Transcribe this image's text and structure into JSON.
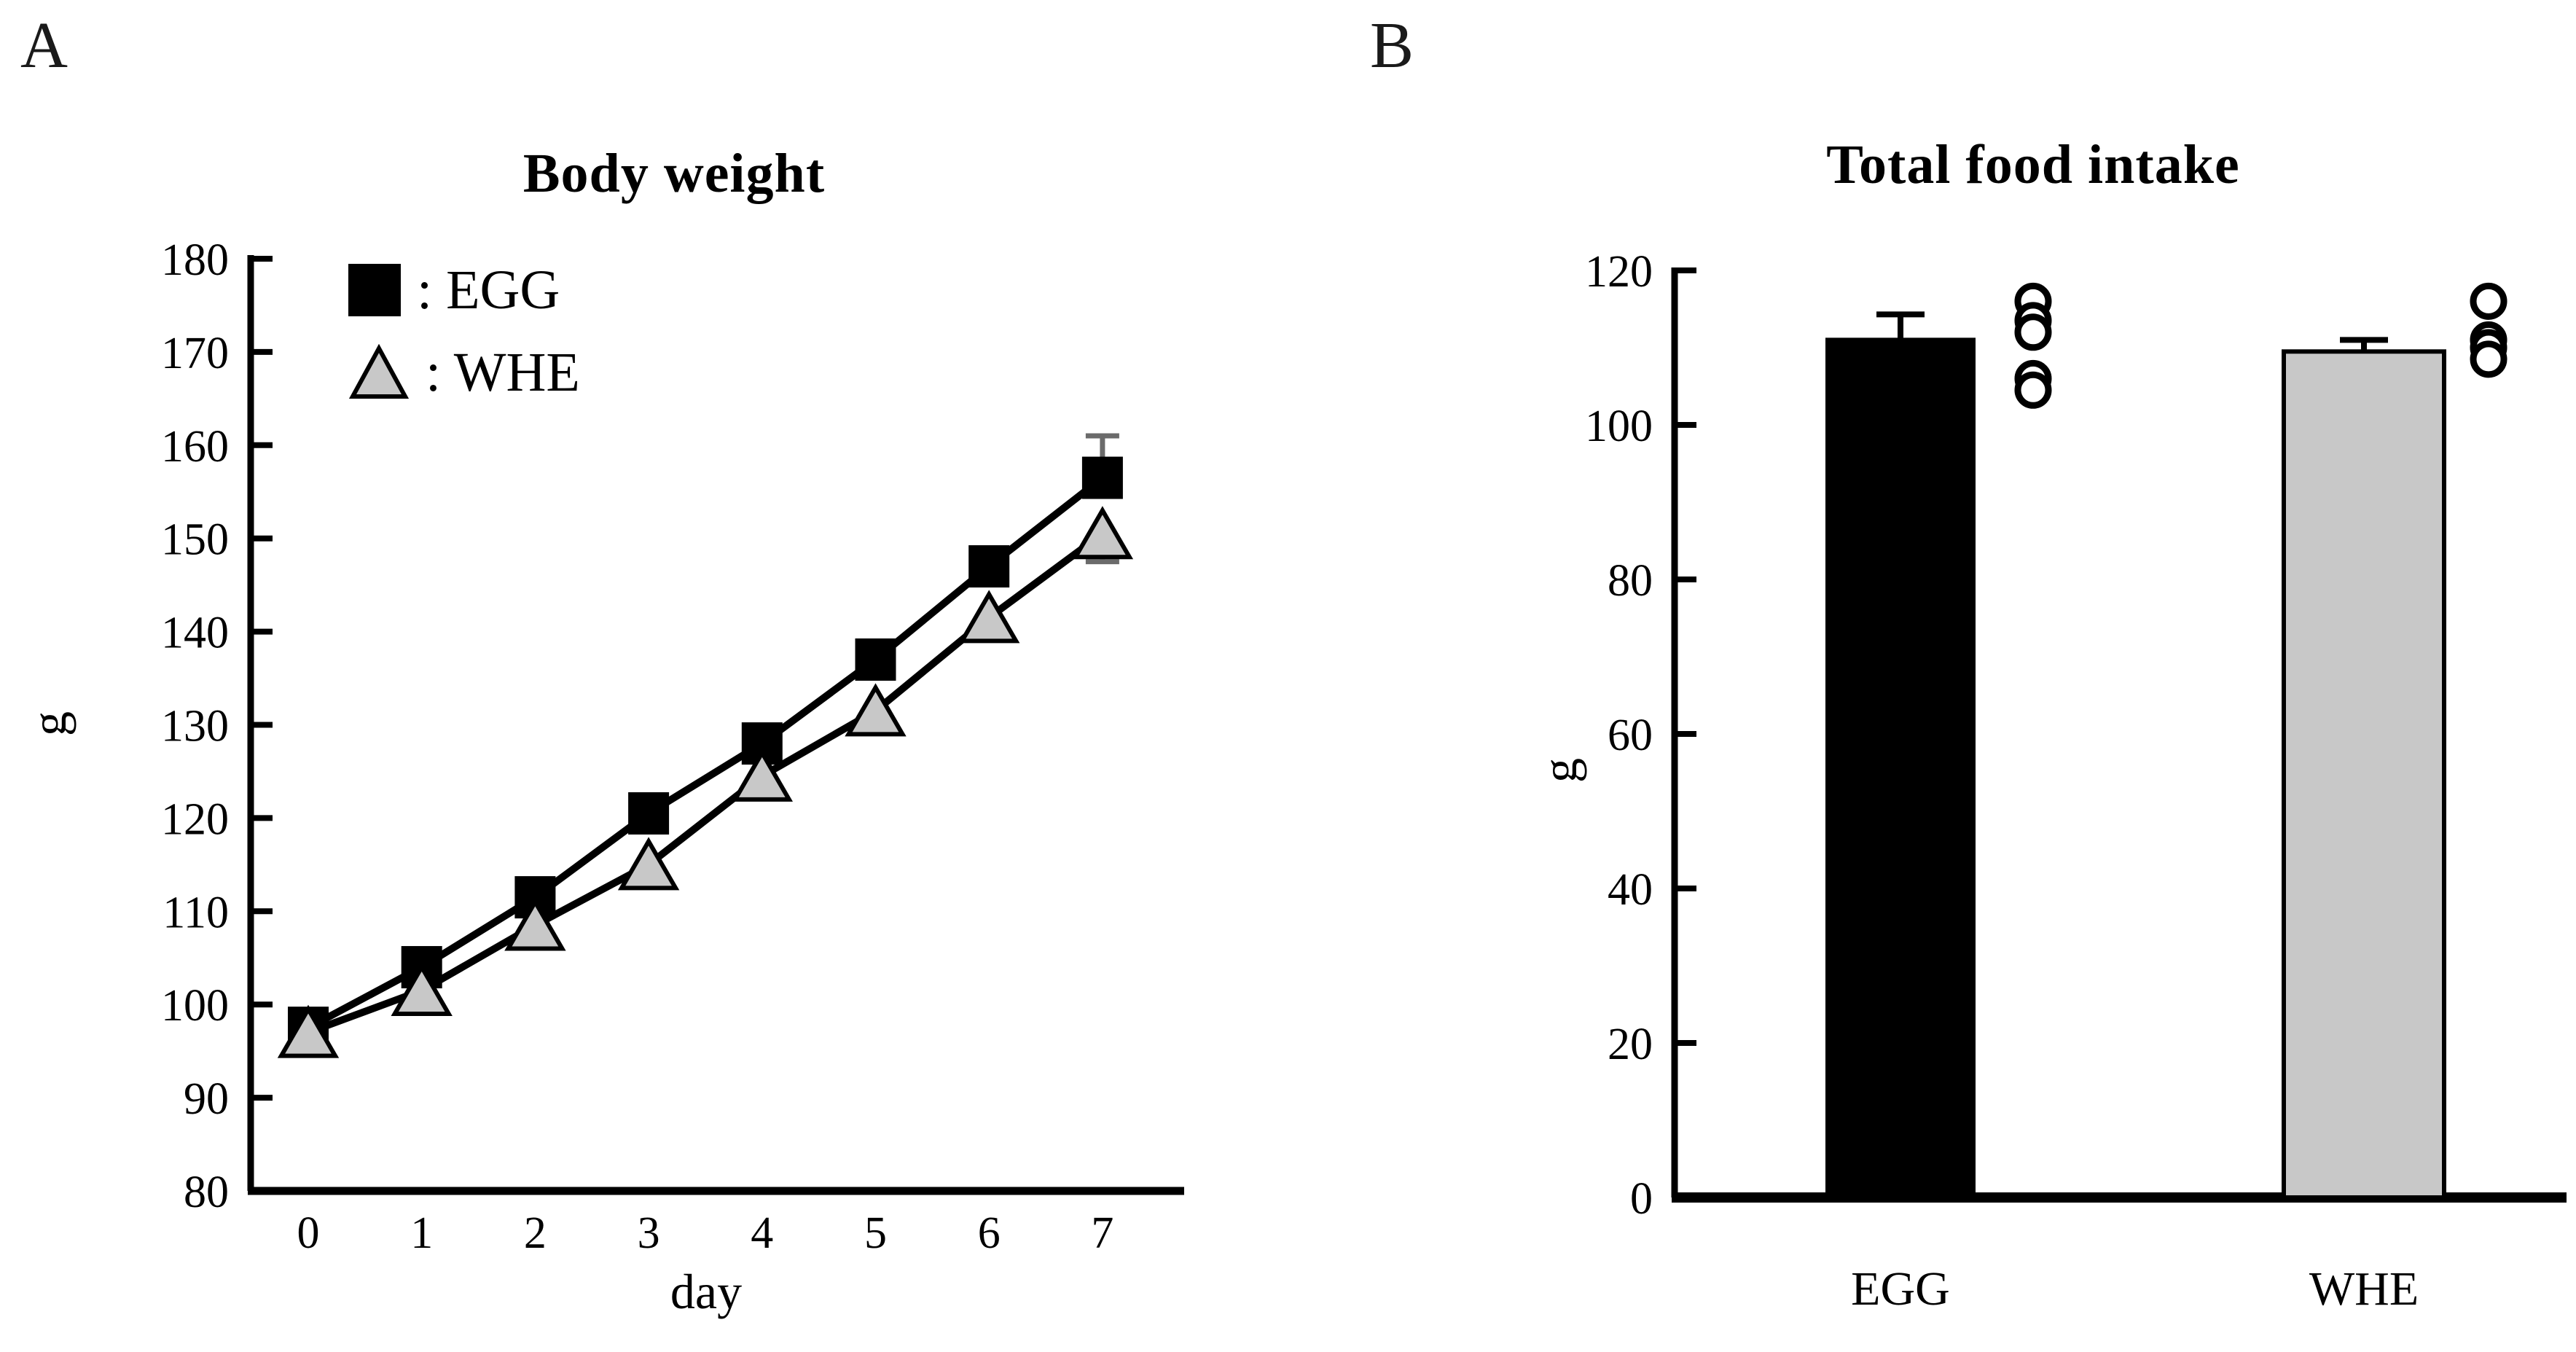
{
  "figure": {
    "panel_a": {
      "label": "A",
      "legend": [
        {
          "marker": "square-icon",
          "marker_color": "#000000",
          "label": ": EGG"
        },
        {
          "marker": "triangle-icon",
          "marker_color": "#c8c8c8",
          "label": ": WHE"
        }
      ]
    },
    "panel_b": {
      "label": "B"
    }
  },
  "colors": {
    "black": "#000000",
    "gray_fill": "#c8c8c8",
    "error_bar_a": "#6b6b6b",
    "error_bar_b": "#000000",
    "dot_fill": "#ffffff"
  },
  "chart_data": [
    {
      "id": "body-weight",
      "type": "line",
      "title": "Body weight",
      "xlabel": "day",
      "ylabel": "g",
      "x": [
        0,
        1,
        2,
        3,
        4,
        5,
        6,
        7
      ],
      "xticks": [
        "0",
        "1",
        "2",
        "3",
        "4",
        "5",
        "6",
        "7"
      ],
      "yticks": [
        80,
        90,
        100,
        110,
        120,
        130,
        140,
        150,
        160,
        170,
        180
      ],
      "ylim": [
        80,
        180
      ],
      "grid": false,
      "legend_position": "top-left-inside",
      "error_color": "#6b6b6b",
      "series": [
        {
          "name": "EGG",
          "marker": "square",
          "fill": "#000000",
          "values": [
            97.5,
            104,
            111.5,
            120.5,
            128,
            137,
            147,
            156.5
          ],
          "error_bars": [
            {
              "x": 7,
              "up": 4.5
            }
          ]
        },
        {
          "name": "WHE",
          "marker": "triangle",
          "fill": "#c8c8c8",
          "values": [
            97,
            101.5,
            108.5,
            115,
            124.5,
            131.5,
            141.5,
            150.5
          ],
          "error_bars": [
            {
              "x": 7,
              "down": 3
            }
          ]
        }
      ]
    },
    {
      "id": "total-food-intake",
      "type": "bar",
      "title": "Total food intake",
      "ylabel": "g",
      "categories": [
        "EGG",
        "WHE"
      ],
      "yticks": [
        0,
        20,
        40,
        60,
        80,
        100,
        120
      ],
      "ylim": [
        0,
        120
      ],
      "grid": false,
      "error_color": "#000000",
      "bars": [
        {
          "category": "EGG",
          "value": 111,
          "error_plus": 3.3,
          "fill": "#000000",
          "points": [
            116,
            113.5,
            112,
            106,
            104.5
          ]
        },
        {
          "category": "WHE",
          "value": 109.5,
          "error_plus": 1.5,
          "fill": "#c8c8c8",
          "points": [
            116,
            111,
            110,
            108.5
          ]
        }
      ]
    }
  ]
}
